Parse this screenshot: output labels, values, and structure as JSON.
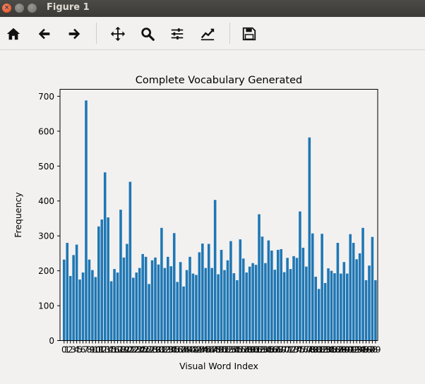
{
  "window": {
    "title": "Figure 1"
  },
  "toolbar": {
    "buttons": [
      {
        "name": "home-button",
        "icon": "home-icon"
      },
      {
        "name": "back-button",
        "icon": "arrow-left-icon"
      },
      {
        "name": "forward-button",
        "icon": "arrow-right-icon"
      },
      {
        "name": "pan-button",
        "icon": "move-icon"
      },
      {
        "name": "zoom-button",
        "icon": "magnifier-icon"
      },
      {
        "name": "subplots-button",
        "icon": "sliders-icon"
      },
      {
        "name": "edit-axes-button",
        "icon": "line-chart-icon"
      },
      {
        "name": "save-button",
        "icon": "floppy-disk-icon"
      }
    ]
  },
  "chart_data": {
    "type": "bar",
    "title": "Complete Vocabulary Generated",
    "xlabel": "Visual Word Index",
    "ylabel": "Frequency",
    "ylim": [
      0,
      720
    ],
    "yticks": [
      0,
      100,
      200,
      300,
      400,
      500,
      600,
      700
    ],
    "bar_color": "#1f77b4",
    "x": [
      0,
      1,
      2,
      3,
      4,
      5,
      6,
      7,
      8,
      9,
      10,
      11,
      12,
      13,
      14,
      15,
      16,
      17,
      18,
      19,
      20,
      21,
      22,
      23,
      24,
      25,
      26,
      27,
      28,
      29,
      30,
      31,
      32,
      33,
      34,
      35,
      36,
      37,
      38,
      39,
      40,
      41,
      42,
      43,
      44,
      45,
      46,
      47,
      48,
      49,
      50,
      51,
      52,
      53,
      54,
      55,
      56,
      57,
      58,
      59,
      60,
      61,
      62,
      63,
      64,
      65,
      66,
      67,
      68,
      69,
      70,
      71,
      72,
      73,
      74,
      75,
      76,
      77,
      78,
      79,
      80,
      81,
      82,
      83,
      84,
      85,
      86,
      87,
      88,
      89,
      90,
      91,
      92,
      93,
      94,
      95,
      96,
      97,
      98,
      99
    ],
    "values": [
      232,
      280,
      185,
      245,
      275,
      175,
      195,
      688,
      232,
      202,
      182,
      327,
      347,
      482,
      353,
      170,
      205,
      195,
      375,
      238,
      277,
      455,
      180,
      195,
      208,
      248,
      240,
      162,
      230,
      238,
      218,
      323,
      208,
      240,
      213,
      308,
      168,
      225,
      155,
      202,
      240,
      192,
      188,
      253,
      278,
      208,
      277,
      208,
      403,
      190,
      260,
      202,
      230,
      285,
      193,
      173,
      290,
      235,
      195,
      212,
      222,
      217,
      362,
      298,
      222,
      287,
      258,
      203,
      260,
      262,
      196,
      237,
      205,
      242,
      237,
      370,
      266,
      212,
      582,
      307,
      183,
      148,
      306,
      165,
      207,
      200,
      193,
      280,
      192,
      225,
      192,
      305,
      280,
      233,
      250,
      323,
      173,
      215,
      297,
      173
    ],
    "xtick_labels": [
      "0",
      "1",
      "2",
      "3",
      "4",
      "5",
      "6",
      "7",
      "8",
      "9",
      "10",
      "11",
      "12",
      "13",
      "14",
      "15",
      "16",
      "17",
      "18",
      "19",
      "20",
      "21",
      "22",
      "23",
      "24",
      "25",
      "26",
      "27",
      "28",
      "29",
      "30",
      "31",
      "32",
      "33",
      "34",
      "35",
      "36",
      "37",
      "38",
      "39",
      "40",
      "41",
      "42",
      "43",
      "44",
      "45",
      "46",
      "47",
      "48",
      "49",
      "50",
      "51",
      "52",
      "53",
      "54",
      "55",
      "56",
      "57",
      "58",
      "59",
      "60",
      "61",
      "62",
      "63",
      "64",
      "65",
      "66",
      "67",
      "68",
      "69",
      "70",
      "71",
      "72",
      "73",
      "74",
      "75",
      "76",
      "77",
      "78",
      "79",
      "80",
      "81",
      "82",
      "83",
      "84",
      "85",
      "86",
      "87",
      "88",
      "89",
      "90",
      "91",
      "92",
      "93",
      "94",
      "95",
      "96",
      "97",
      "98",
      "99"
    ],
    "grid": false,
    "legend": "none"
  }
}
